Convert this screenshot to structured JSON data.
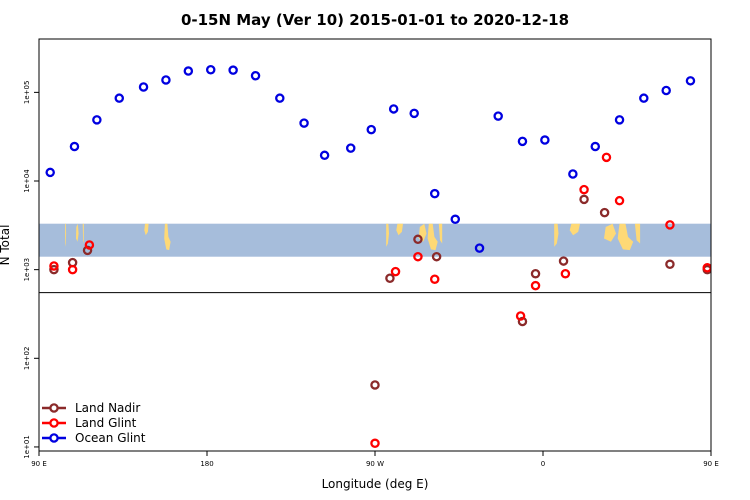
{
  "chart_data": {
    "type": "scatter",
    "title": "0-15N May (Ver 10)   2015-01-01 to 2020-12-18",
    "xlabel": "Longitude (deg E)",
    "ylabel": "N Total",
    "x_scale": "linear",
    "y_scale": "log",
    "xlim": [
      90,
      450
    ],
    "ylim": [
      9,
      400000
    ],
    "grid": false,
    "legend_position": "bottom-left",
    "x_ticks": [
      {
        "value": 90,
        "label": "90 E"
      },
      {
        "value": 180,
        "label": "180"
      },
      {
        "value": 270,
        "label": "90 W"
      },
      {
        "value": 360,
        "label": "0"
      },
      {
        "value": 450,
        "label": "90 E"
      },
      {
        "value": 540,
        "label": "180"
      }
    ],
    "x_ticks_note": "the axis runs from 90 E eastward across 180 and 90 W to 0 and back to 90 E and 180; x values are continuous degrees east of the prime meridian so the axis can wrap",
    "y_ticks": [
      {
        "value": 10,
        "label": "1e+01"
      },
      {
        "value": 100,
        "label": "1e+02"
      },
      {
        "value": 1000,
        "label": "1e+03"
      },
      {
        "value": 10000,
        "label": "1e+04"
      },
      {
        "value": 100000,
        "label": "1e+05"
      }
    ],
    "map_band": {
      "y_range": [
        1400,
        3300
      ],
      "ocean_color": "#a6bddb",
      "land_color": "#fed976"
    },
    "divider_value": 550,
    "series": [
      {
        "name": "Land Nadir",
        "color": "#8b2a2a",
        "points": [
          {
            "x": 98,
            "y": 1000
          },
          {
            "x": 108,
            "y": 1200
          },
          {
            "x": 116,
            "y": 1650
          },
          {
            "x": 270,
            "y": 50
          },
          {
            "x": 278,
            "y": 800
          },
          {
            "x": 293,
            "y": 2200
          },
          {
            "x": 303,
            "y": 1400
          },
          {
            "x": 349,
            "y": 260
          },
          {
            "x": 356,
            "y": 900
          },
          {
            "x": 371,
            "y": 1250
          },
          {
            "x": 382,
            "y": 6200
          },
          {
            "x": 393,
            "y": 4400
          },
          {
            "x": 428,
            "y": 1150
          },
          {
            "x": 448,
            "y": 1000
          },
          {
            "x": 457,
            "y": 1250
          },
          {
            "x": 465,
            "y": 1650
          }
        ]
      },
      {
        "name": "Land Glint",
        "color": "#ff0000",
        "points": [
          {
            "x": 98,
            "y": 1100
          },
          {
            "x": 108,
            "y": 1000
          },
          {
            "x": 117,
            "y": 1900
          },
          {
            "x": 270,
            "y": 11
          },
          {
            "x": 281,
            "y": 950
          },
          {
            "x": 293,
            "y": 1400
          },
          {
            "x": 302,
            "y": 780
          },
          {
            "x": 348,
            "y": 300
          },
          {
            "x": 356,
            "y": 660
          },
          {
            "x": 372,
            "y": 900
          },
          {
            "x": 382,
            "y": 8000
          },
          {
            "x": 394,
            "y": 18500
          },
          {
            "x": 401,
            "y": 6000
          },
          {
            "x": 428,
            "y": 3200
          },
          {
            "x": 448,
            "y": 1050
          },
          {
            "x": 457,
            "y": 1000
          },
          {
            "x": 465,
            "y": 1900
          }
        ]
      },
      {
        "name": "Ocean Glint",
        "color": "#0000e0",
        "points": [
          {
            "x": 96,
            "y": 12500
          },
          {
            "x": 109,
            "y": 24500
          },
          {
            "x": 121,
            "y": 49000
          },
          {
            "x": 133,
            "y": 86000
          },
          {
            "x": 146,
            "y": 115000
          },
          {
            "x": 158,
            "y": 138000
          },
          {
            "x": 170,
            "y": 174000
          },
          {
            "x": 182,
            "y": 180000
          },
          {
            "x": 194,
            "y": 178000
          },
          {
            "x": 206,
            "y": 154000
          },
          {
            "x": 219,
            "y": 86000
          },
          {
            "x": 232,
            "y": 45000
          },
          {
            "x": 243,
            "y": 19500
          },
          {
            "x": 257,
            "y": 23500
          },
          {
            "x": 268,
            "y": 38000
          },
          {
            "x": 280,
            "y": 65000
          },
          {
            "x": 291,
            "y": 58000
          },
          {
            "x": 302,
            "y": 7200
          },
          {
            "x": 313,
            "y": 3700
          },
          {
            "x": 326,
            "y": 1750
          },
          {
            "x": 336,
            "y": 54000
          },
          {
            "x": 349,
            "y": 28000
          },
          {
            "x": 361,
            "y": 29000
          },
          {
            "x": 376,
            "y": 12000
          },
          {
            "x": 388,
            "y": 24500
          },
          {
            "x": 401,
            "y": 49000
          },
          {
            "x": 414,
            "y": 86000
          },
          {
            "x": 426,
            "y": 105000
          },
          {
            "x": 439,
            "y": 135000
          }
        ]
      }
    ]
  }
}
